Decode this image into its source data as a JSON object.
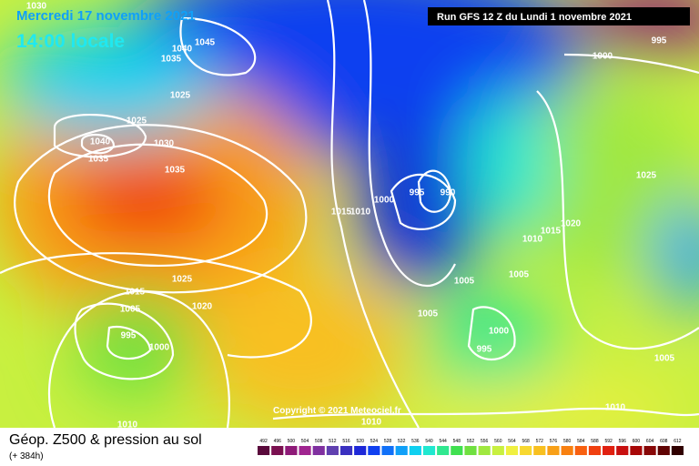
{
  "header": {
    "date": "Mercredi 17 novembre 2021",
    "time": "14:00 locale",
    "run": "Run GFS 12 Z du Lundi 1 novembre 2021"
  },
  "copyright": "Copyright © 2021 Meteociel.fr",
  "isobar_labels": [
    1030,
    1045,
    1040,
    1035,
    1025,
    1025,
    1040,
    1030,
    1035,
    1035,
    1015,
    1010,
    1000,
    995,
    990,
    1025,
    1020,
    1015,
    1010,
    1005,
    1005,
    1005,
    1025,
    1015,
    1020,
    1005,
    995,
    1000,
    1000,
    995,
    1005,
    1010,
    1010,
    1010,
    1000,
    995
  ],
  "footer": {
    "title": "Géop. Z500 & pression au sol",
    "subtitle": "(+ 384h)"
  },
  "legend": {
    "values": [
      492,
      496,
      500,
      504,
      508,
      512,
      516,
      520,
      524,
      528,
      532,
      536,
      540,
      544,
      548,
      552,
      556,
      560,
      564,
      568,
      572,
      576,
      580,
      584,
      588,
      592,
      596,
      600,
      604,
      608,
      612
    ],
    "colors": [
      "#5a0a3c",
      "#7a1050",
      "#8e1a78",
      "#a02590",
      "#8030a0",
      "#6040b0",
      "#3a30c0",
      "#1e28d8",
      "#1040f0",
      "#1070f8",
      "#10a0f8",
      "#10d0f0",
      "#20e8d0",
      "#30e890",
      "#40e050",
      "#70e040",
      "#a0e840",
      "#c8f040",
      "#f0f040",
      "#f8d830",
      "#f8c020",
      "#f8a018",
      "#f88010",
      "#f86010",
      "#f04010",
      "#e02010",
      "#c81010",
      "#a80808",
      "#880808",
      "#600404",
      "#300000"
    ]
  }
}
